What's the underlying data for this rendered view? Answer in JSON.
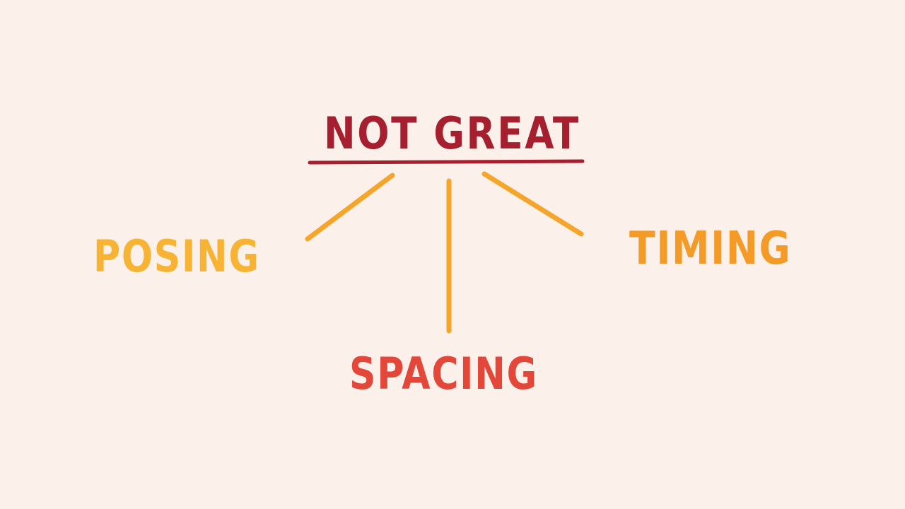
{
  "diagram": {
    "root": {
      "label": "NOT GREAT",
      "color": "#a51f2f"
    },
    "branches": [
      {
        "label": "POSING",
        "color": "#f7b333"
      },
      {
        "label": "TIMING",
        "color": "#f49a26"
      },
      {
        "label": "SPACING",
        "color": "#e3473a"
      }
    ],
    "connector_color": "#f6a52b",
    "background": "#fcf0ea"
  }
}
